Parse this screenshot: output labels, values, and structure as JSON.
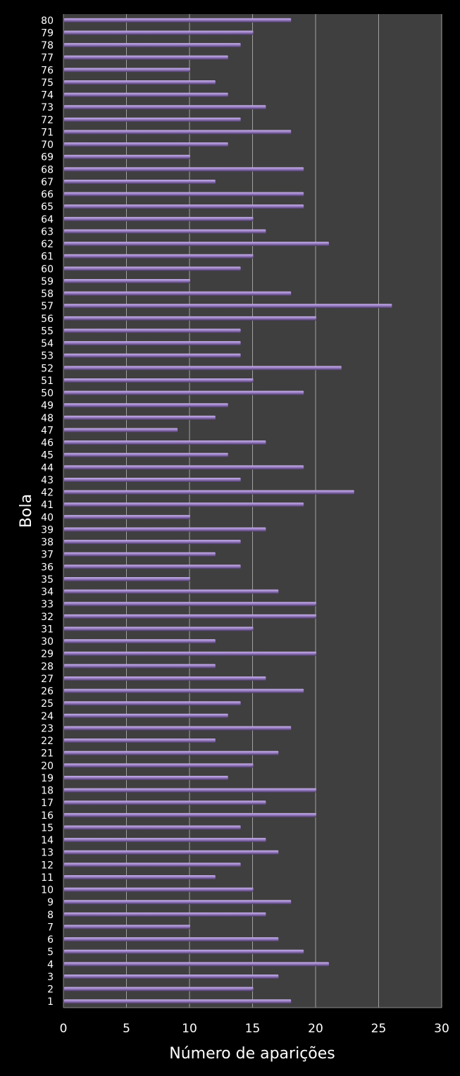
{
  "chart_data": {
    "type": "bar",
    "orientation": "horizontal",
    "xlabel": "Número de aparições",
    "ylabel": "Bola",
    "xlim": [
      0,
      30
    ],
    "xticks": [
      0,
      5,
      10,
      15,
      20,
      25,
      30
    ],
    "grid": true,
    "legend": "none",
    "colors": {
      "background": "#000000",
      "plot_background": "#3f3f3f",
      "bar": "#9b7fc6",
      "bar_highlight": "#c9b3ec",
      "bar_shadow": "#4b3a66",
      "grid": "#a0a0a0",
      "text": "#ffffff"
    },
    "categories": [
      "1",
      "2",
      "3",
      "4",
      "5",
      "6",
      "7",
      "8",
      "9",
      "10",
      "11",
      "12",
      "13",
      "14",
      "15",
      "16",
      "17",
      "18",
      "19",
      "20",
      "21",
      "22",
      "23",
      "24",
      "25",
      "26",
      "27",
      "28",
      "29",
      "30",
      "31",
      "32",
      "33",
      "34",
      "35",
      "36",
      "37",
      "38",
      "39",
      "40",
      "41",
      "42",
      "43",
      "44",
      "45",
      "46",
      "47",
      "48",
      "49",
      "50",
      "51",
      "52",
      "53",
      "54",
      "55",
      "56",
      "57",
      "58",
      "59",
      "60",
      "61",
      "62",
      "63",
      "64",
      "65",
      "66",
      "67",
      "68",
      "69",
      "70",
      "71",
      "72",
      "73",
      "74",
      "75",
      "76",
      "77",
      "78",
      "79",
      "80"
    ],
    "values": [
      18,
      15,
      17,
      21,
      19,
      17,
      10,
      16,
      18,
      15,
      12,
      14,
      17,
      16,
      14,
      20,
      16,
      20,
      13,
      15,
      17,
      12,
      18,
      13,
      14,
      19,
      16,
      12,
      20,
      12,
      15,
      20,
      20,
      17,
      10,
      14,
      12,
      14,
      16,
      10,
      19,
      23,
      14,
      19,
      13,
      16,
      9,
      12,
      13,
      19,
      15,
      22,
      14,
      14,
      14,
      20,
      26,
      18,
      10,
      14,
      15,
      21,
      16,
      15,
      19,
      19,
      12,
      19,
      10,
      13,
      18,
      14,
      16,
      13,
      12,
      10,
      13,
      14,
      15,
      18
    ]
  }
}
